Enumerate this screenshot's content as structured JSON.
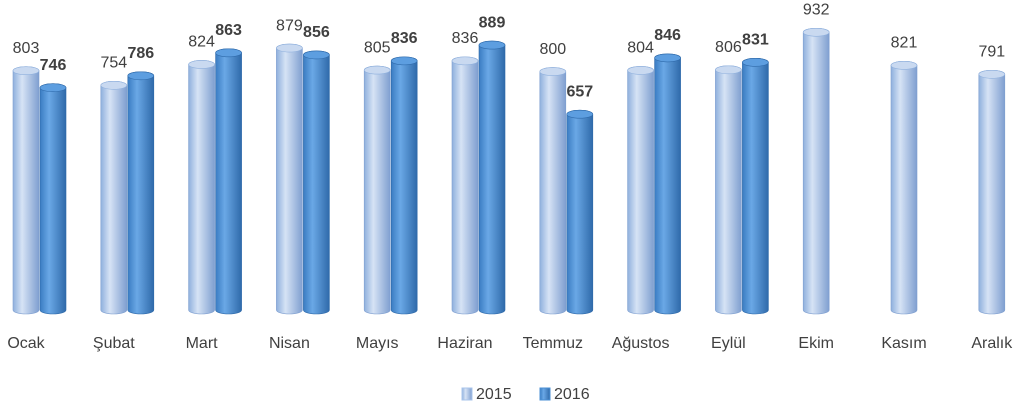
{
  "chart_data": {
    "type": "bar",
    "categories": [
      "Ocak",
      "Şubat",
      "Mart",
      "Nisan",
      "Mayıs",
      "Haziran",
      "Temmuz",
      "Ağustos",
      "Eylül",
      "Ekim",
      "Kasım",
      "Aralık"
    ],
    "series": [
      {
        "name": "2015",
        "color": "#a9c4eb",
        "values": [
          803,
          754,
          824,
          879,
          805,
          836,
          800,
          804,
          806,
          932,
          821,
          791
        ]
      },
      {
        "name": "2016",
        "color": "#4a8fd4",
        "values": [
          746,
          786,
          863,
          856,
          836,
          889,
          657,
          846,
          831,
          null,
          null,
          null
        ]
      }
    ],
    "legend": "bottom"
  }
}
